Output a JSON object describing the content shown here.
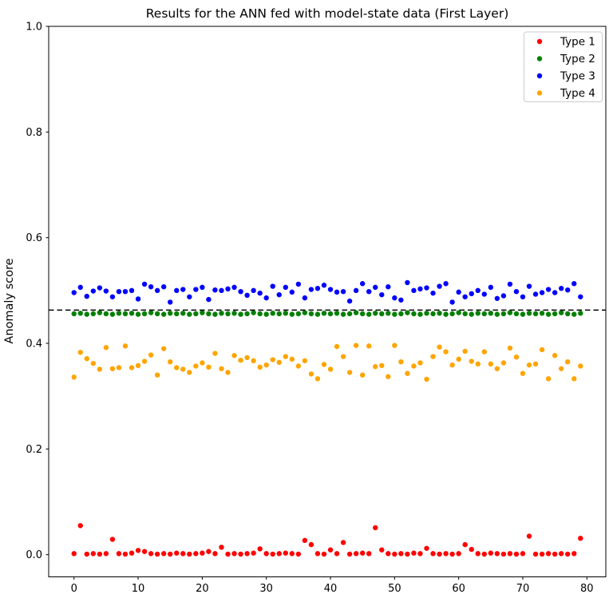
{
  "figure": {
    "title": "Results for the ANN fed with model-state data (First Layer)",
    "ylabel": "Anomaly score"
  },
  "legend": {
    "position": "upper right",
    "items": [
      {
        "label": "Type 1",
        "color": "#ff0000"
      },
      {
        "label": "Type 2",
        "color": "#008000"
      },
      {
        "label": "Type 3",
        "color": "#0000ff"
      },
      {
        "label": "Type 4",
        "color": "#ffa500"
      }
    ]
  },
  "chart_data": {
    "type": "scatter",
    "title": "Results for the ANN fed with model-state data (First Layer)",
    "xlabel": "",
    "ylabel": "Anomaly score",
    "xlim": [
      -3.95,
      82.95
    ],
    "ylim": [
      -0.042,
      1.0
    ],
    "xticks": [
      0,
      10,
      20,
      30,
      40,
      50,
      60,
      70,
      80
    ],
    "yticks": [
      0.0,
      0.2,
      0.4,
      0.6,
      0.8,
      1.0
    ],
    "grid": false,
    "legend_position": "upper right",
    "threshold_line": {
      "y": 0.463,
      "color": "#000000",
      "style": "dashed"
    },
    "x": [
      0,
      1,
      2,
      3,
      4,
      5,
      6,
      7,
      8,
      9,
      10,
      11,
      12,
      13,
      14,
      15,
      16,
      17,
      18,
      19,
      20,
      21,
      22,
      23,
      24,
      25,
      26,
      27,
      28,
      29,
      30,
      31,
      32,
      33,
      34,
      35,
      36,
      37,
      38,
      39,
      40,
      41,
      42,
      43,
      44,
      45,
      46,
      47,
      48,
      49,
      50,
      51,
      52,
      53,
      54,
      55,
      56,
      57,
      58,
      59,
      60,
      61,
      62,
      63,
      64,
      65,
      66,
      67,
      68,
      69,
      70,
      71,
      72,
      73,
      74,
      75,
      76,
      77,
      78,
      79
    ],
    "series": [
      {
        "name": "Type 1",
        "color": "#ff0000",
        "values": [
          0.002,
          0.055,
          0.001,
          0.002,
          0.001,
          0.002,
          0.029,
          0.002,
          0.001,
          0.003,
          0.008,
          0.006,
          0.002,
          0.001,
          0.002,
          0.001,
          0.003,
          0.002,
          0.001,
          0.002,
          0.003,
          0.006,
          0.002,
          0.014,
          0.001,
          0.002,
          0.001,
          0.002,
          0.003,
          0.011,
          0.002,
          0.001,
          0.002,
          0.003,
          0.002,
          0.001,
          0.027,
          0.019,
          0.002,
          0.001,
          0.009,
          0.002,
          0.023,
          0.001,
          0.002,
          0.003,
          0.002,
          0.051,
          0.009,
          0.002,
          0.001,
          0.002,
          0.001,
          0.003,
          0.002,
          0.012,
          0.002,
          0.001,
          0.002,
          0.001,
          0.002,
          0.019,
          0.01,
          0.002,
          0.001,
          0.003,
          0.002,
          0.001,
          0.002,
          0.001,
          0.002,
          0.035,
          0.001,
          0.001,
          0.002,
          0.001,
          0.002,
          0.001,
          0.002,
          0.031
        ]
      },
      {
        "name": "Type 2",
        "color": "#008000",
        "values": [
          0.456,
          0.457,
          0.455,
          0.456,
          0.458,
          0.456,
          0.455,
          0.457,
          0.456,
          0.457,
          0.455,
          0.456,
          0.458,
          0.456,
          0.455,
          0.457,
          0.456,
          0.457,
          0.455,
          0.456,
          0.458,
          0.456,
          0.455,
          0.457,
          0.456,
          0.457,
          0.455,
          0.456,
          0.458,
          0.456,
          0.455,
          0.457,
          0.456,
          0.457,
          0.455,
          0.456,
          0.458,
          0.456,
          0.455,
          0.457,
          0.456,
          0.457,
          0.455,
          0.456,
          0.458,
          0.456,
          0.455,
          0.457,
          0.456,
          0.457,
          0.455,
          0.456,
          0.458,
          0.456,
          0.455,
          0.457,
          0.456,
          0.457,
          0.455,
          0.456,
          0.458,
          0.456,
          0.455,
          0.457,
          0.456,
          0.457,
          0.455,
          0.456,
          0.458,
          0.456,
          0.455,
          0.457,
          0.456,
          0.457,
          0.455,
          0.456,
          0.458,
          0.456,
          0.455,
          0.457
        ]
      },
      {
        "name": "Type 3",
        "color": "#0000ff",
        "values": [
          0.496,
          0.506,
          0.489,
          0.499,
          0.505,
          0.499,
          0.488,
          0.498,
          0.498,
          0.5,
          0.484,
          0.512,
          0.507,
          0.5,
          0.507,
          0.478,
          0.5,
          0.502,
          0.488,
          0.502,
          0.506,
          0.483,
          0.501,
          0.5,
          0.503,
          0.506,
          0.498,
          0.491,
          0.5,
          0.495,
          0.486,
          0.508,
          0.492,
          0.506,
          0.497,
          0.512,
          0.486,
          0.502,
          0.504,
          0.51,
          0.502,
          0.497,
          0.498,
          0.48,
          0.5,
          0.513,
          0.498,
          0.506,
          0.492,
          0.507,
          0.486,
          0.482,
          0.515,
          0.5,
          0.503,
          0.505,
          0.495,
          0.508,
          0.513,
          0.478,
          0.497,
          0.488,
          0.494,
          0.5,
          0.493,
          0.506,
          0.485,
          0.49,
          0.512,
          0.498,
          0.488,
          0.508,
          0.493,
          0.496,
          0.502,
          0.496,
          0.504,
          0.501,
          0.513,
          0.488
        ]
      },
      {
        "name": "Type 4",
        "color": "#ffa500",
        "values": [
          0.336,
          0.383,
          0.371,
          0.362,
          0.351,
          0.392,
          0.352,
          0.354,
          0.395,
          0.354,
          0.358,
          0.366,
          0.378,
          0.34,
          0.39,
          0.365,
          0.354,
          0.351,
          0.345,
          0.357,
          0.363,
          0.355,
          0.381,
          0.352,
          0.345,
          0.377,
          0.368,
          0.373,
          0.367,
          0.355,
          0.359,
          0.369,
          0.364,
          0.375,
          0.37,
          0.357,
          0.367,
          0.342,
          0.333,
          0.36,
          0.351,
          0.394,
          0.375,
          0.345,
          0.396,
          0.34,
          0.395,
          0.356,
          0.358,
          0.337,
          0.396,
          0.365,
          0.343,
          0.357,
          0.363,
          0.332,
          0.375,
          0.393,
          0.384,
          0.359,
          0.37,
          0.385,
          0.366,
          0.361,
          0.384,
          0.361,
          0.352,
          0.363,
          0.391,
          0.374,
          0.343,
          0.359,
          0.361,
          0.388,
          0.333,
          0.377,
          0.352,
          0.365,
          0.333,
          0.357
        ]
      }
    ]
  }
}
